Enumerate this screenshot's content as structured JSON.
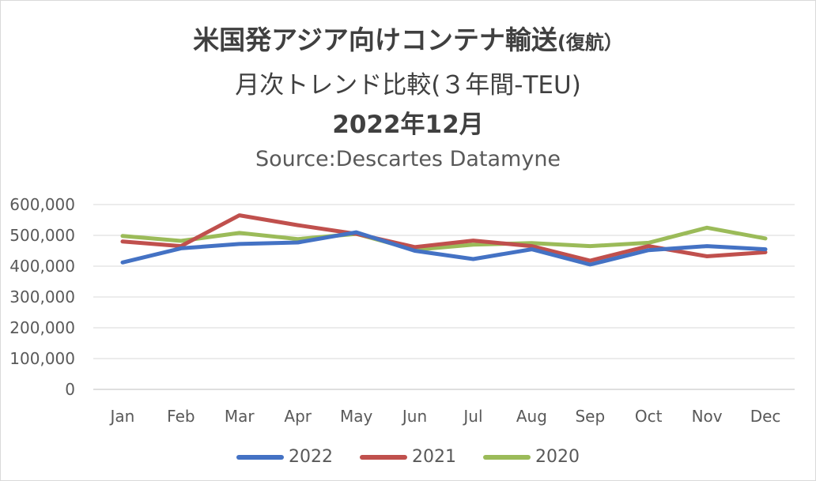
{
  "title": {
    "line1_main": "米国発アジア向けコンテナ輸送",
    "line1_small": "(復航）",
    "line2": "月次トレンド比較(３年間-TEU)",
    "line3": "2022年12月",
    "source": "Source:Descartes Datamyne"
  },
  "chart_data": {
    "type": "line",
    "title": "米国発アジア向けコンテナ輸送(復航） 月次トレンド比較(３年間-TEU) 2022年12月",
    "subtitle": "Source:Descartes Datamyne",
    "categories": [
      "Jan",
      "Feb",
      "Mar",
      "Apr",
      "May",
      "Jun",
      "Jul",
      "Aug",
      "Sep",
      "Oct",
      "Nov",
      "Dec"
    ],
    "ylim": [
      0,
      600000
    ],
    "yticks": [
      0,
      100000,
      200000,
      300000,
      400000,
      500000,
      600000
    ],
    "ytick_labels": [
      "0",
      "100,000",
      "200,000",
      "300,000",
      "400,000",
      "500,000",
      "600,000"
    ],
    "grid": true,
    "legend_position": "bottom",
    "series": [
      {
        "name": "2022",
        "color": "#4472C4",
        "values": [
          412000,
          458000,
          472000,
          477000,
          510000,
          450000,
          423000,
          455000,
          405000,
          452000,
          465000,
          455000
        ]
      },
      {
        "name": "2021",
        "color": "#C0504D",
        "values": [
          480000,
          465000,
          565000,
          533000,
          505000,
          462000,
          483000,
          465000,
          418000,
          465000,
          432000,
          445000
        ]
      },
      {
        "name": "2020",
        "color": "#9BBB59",
        "values": [
          498000,
          482000,
          508000,
          488000,
          505000,
          453000,
          470000,
          475000,
          465000,
          476000,
          525000,
          490000
        ]
      }
    ]
  }
}
